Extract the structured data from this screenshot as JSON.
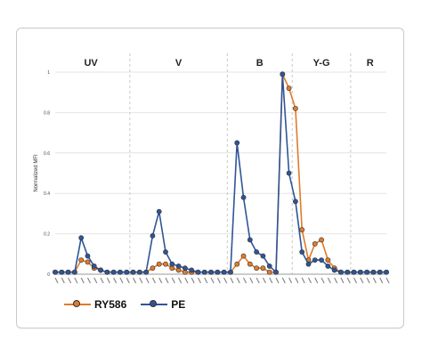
{
  "chart_data": {
    "type": "line",
    "ylabel": "Normalized MFI",
    "ylim": [
      0,
      1
    ],
    "y_ticks": [
      "0",
      "0.2",
      "0.4",
      "0.6",
      "0.8",
      "1"
    ],
    "grid": true,
    "legend_position": "bottom-left",
    "groups": [
      {
        "label": "UV",
        "start": 0,
        "end": 11
      },
      {
        "label": "V",
        "start": 12,
        "end": 26
      },
      {
        "label": "B",
        "start": 27,
        "end": 36
      },
      {
        "label": "Y-G",
        "start": 37,
        "end": 45
      },
      {
        "label": "R",
        "start": 46,
        "end": 51
      }
    ],
    "colors": {
      "RY586": "#e07b2a",
      "PE": "#2f5597"
    },
    "series": [
      {
        "name": "RY586",
        "values": [
          0.01,
          0.01,
          0.01,
          0.01,
          0.07,
          0.06,
          0.03,
          0.02,
          0.01,
          0.01,
          0.01,
          0.01,
          0.01,
          0.01,
          0.01,
          0.03,
          0.05,
          0.05,
          0.03,
          0.02,
          0.01,
          0.01,
          0.01,
          0.01,
          0.01,
          0.01,
          0.01,
          0.01,
          0.05,
          0.09,
          0.05,
          0.03,
          0.03,
          0.01,
          0.01,
          0.99,
          0.92,
          0.82,
          0.22,
          0.07,
          0.15,
          0.17,
          0.07,
          0.03,
          0.01,
          0.01,
          0.01,
          0.01,
          0.01,
          0.01,
          0.01,
          0.01
        ]
      },
      {
        "name": "PE",
        "values": [
          0.01,
          0.01,
          0.01,
          0.01,
          0.18,
          0.09,
          0.04,
          0.02,
          0.01,
          0.01,
          0.01,
          0.01,
          0.01,
          0.01,
          0.01,
          0.19,
          0.31,
          0.11,
          0.05,
          0.04,
          0.03,
          0.02,
          0.01,
          0.01,
          0.01,
          0.01,
          0.01,
          0.01,
          0.65,
          0.38,
          0.17,
          0.11,
          0.09,
          0.04,
          0.01,
          0.99,
          0.5,
          0.36,
          0.11,
          0.05,
          0.07,
          0.07,
          0.04,
          0.02,
          0.01,
          0.01,
          0.01,
          0.01,
          0.01,
          0.01,
          0.01,
          0.01
        ]
      }
    ]
  }
}
